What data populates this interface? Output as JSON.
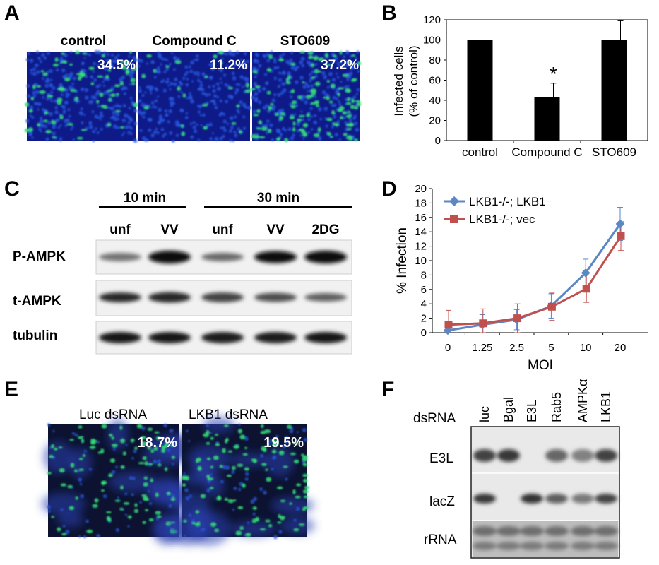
{
  "panels": {
    "a": {
      "label": "A",
      "columns": [
        "control",
        "Compound C",
        "STO609"
      ],
      "percents": [
        "34.5%",
        "11.2%",
        "37.2%"
      ]
    },
    "b": {
      "label": "B",
      "chart_data": {
        "type": "bar",
        "categories": [
          "control",
          "Compound C",
          "STO609"
        ],
        "values": [
          100,
          43,
          100
        ],
        "errors": [
          0,
          14,
          19
        ],
        "ylabel_line1": "Infected cells",
        "ylabel_line2": "(% of control)",
        "ylim": [
          0,
          120
        ],
        "yticks": [
          "0",
          "20",
          "40",
          "60",
          "80",
          "100",
          "120"
        ],
        "annotation": "*",
        "bar_color": "#000000"
      }
    },
    "c": {
      "label": "C",
      "groups": [
        "10 min",
        "30 min"
      ],
      "lanes": [
        "unf",
        "VV",
        "unf",
        "VV",
        "2DG"
      ],
      "rows": [
        "P-AMPK",
        "t-AMPK",
        "tubulin"
      ]
    },
    "d": {
      "label": "D",
      "chart_data": {
        "type": "line",
        "categories": [
          "0",
          "1.25",
          "2.5",
          "5",
          "10",
          "20"
        ],
        "series": [
          {
            "name": "LKB1-/-;  LKB1",
            "values": [
              0.3,
              1.1,
              1.8,
              3.7,
              8.3,
              15.1
            ],
            "errors": [
              1.2,
              1.4,
              1.4,
              1.7,
              1.9,
              2.3
            ],
            "color": "#5b87c5"
          },
          {
            "name": "LKB1-/-;  vec",
            "values": [
              1.1,
              1.3,
              2.0,
              3.6,
              6.1,
              13.4
            ],
            "errors": [
              2.0,
              2.0,
              2.0,
              1.9,
              1.9,
              2.0
            ],
            "color": "#c0504d"
          }
        ],
        "xlabel": "MOI",
        "ylabel": "% Infection",
        "ylim": [
          0,
          20
        ],
        "yticks": [
          "0",
          "2",
          "4",
          "6",
          "8",
          "10",
          "12",
          "14",
          "16",
          "18",
          "20"
        ],
        "legend": "top-left"
      }
    },
    "e": {
      "label": "E",
      "columns": [
        "Luc dsRNA",
        "LKB1 dsRNA"
      ],
      "percents": [
        "18.7%",
        "19.5%"
      ]
    },
    "f": {
      "label": "F",
      "row_header": "dsRNA",
      "lanes": [
        "luc",
        "Bgal",
        "E3L",
        "Rab5",
        "AMPKα",
        "LKB1"
      ],
      "rows": [
        "E3L",
        "lacZ",
        "rRNA"
      ]
    }
  }
}
